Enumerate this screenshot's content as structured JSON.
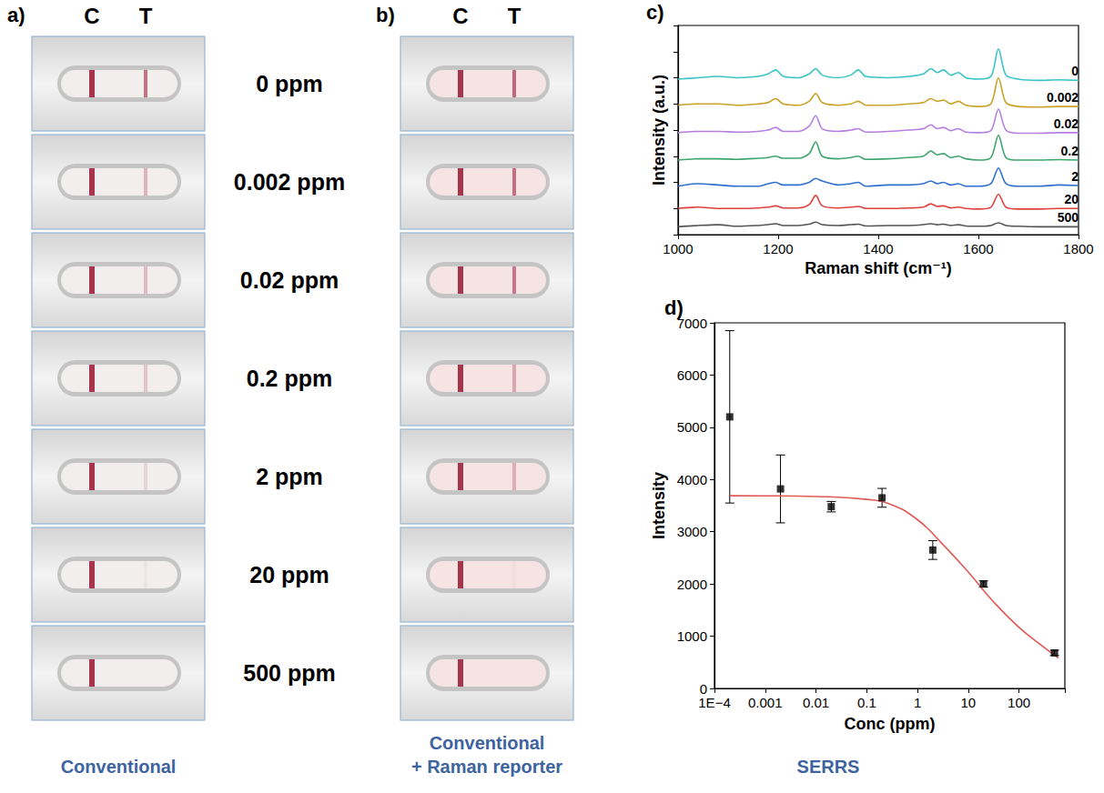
{
  "panels": [
    {
      "panel": "a)",
      "columns": [
        "C",
        "T"
      ],
      "caption": "Conventional"
    },
    {
      "panel": "b)",
      "columns": [
        "C",
        "T"
      ],
      "caption": "Conventional + Raman reporter"
    }
  ],
  "strip_labels": [
    "0 ppm",
    "0.002 ppm",
    "0.02 ppm",
    "0.2 ppm",
    "2 ppm",
    "20 ppm",
    "500 ppm"
  ],
  "chart_data": [
    {
      "panel": "c)",
      "type": "line",
      "xlabel": "Raman shift (cm⁻¹)",
      "ylabel": "Intensity (a.u.)",
      "x": [
        1000,
        1040,
        1080,
        1120,
        1160,
        1180,
        1195,
        1210,
        1240,
        1262,
        1275,
        1288,
        1320,
        1345,
        1360,
        1375,
        1420,
        1460,
        1490,
        1505,
        1518,
        1530,
        1545,
        1560,
        1575,
        1600,
        1625,
        1640,
        1655,
        1680,
        1720,
        1760,
        1800
      ],
      "series": [
        {
          "name": "0",
          "color": "#3cc3c6",
          "values": [
            5.95,
            6.0,
            6.05,
            6.0,
            6.05,
            6.15,
            6.3,
            6.05,
            6.0,
            6.15,
            6.35,
            6.1,
            6.0,
            6.1,
            6.3,
            6.05,
            6.0,
            6.05,
            6.15,
            6.35,
            6.2,
            6.3,
            6.1,
            6.2,
            6.0,
            5.95,
            6.05,
            7.1,
            6.1,
            5.95,
            5.9,
            5.92,
            5.9
          ]
        },
        {
          "name": "0.002",
          "color": "#c9a227",
          "values": [
            4.95,
            5.0,
            5.0,
            4.95,
            5.0,
            5.05,
            5.2,
            5.0,
            4.95,
            5.1,
            5.4,
            5.05,
            4.95,
            5.0,
            5.1,
            4.95,
            4.95,
            5.0,
            5.05,
            5.2,
            5.1,
            5.15,
            5.0,
            5.1,
            4.95,
            4.9,
            5.0,
            6.0,
            5.05,
            4.9,
            4.88,
            4.9,
            4.9
          ]
        },
        {
          "name": "0.02",
          "color": "#b57fe0",
          "values": [
            3.9,
            3.95,
            3.95,
            3.92,
            3.95,
            4.0,
            4.1,
            3.95,
            3.95,
            4.15,
            4.55,
            4.05,
            3.95,
            4.0,
            4.05,
            3.92,
            3.95,
            4.0,
            4.05,
            4.2,
            4.05,
            4.1,
            3.98,
            4.05,
            3.92,
            3.9,
            3.98,
            4.8,
            4.0,
            3.88,
            3.88,
            3.9,
            3.9
          ]
        },
        {
          "name": "0.2",
          "color": "#3ea56f",
          "values": [
            2.85,
            2.9,
            2.9,
            2.88,
            2.92,
            2.95,
            3.0,
            2.92,
            2.92,
            3.1,
            3.55,
            3.0,
            2.9,
            2.95,
            3.0,
            2.88,
            2.9,
            2.95,
            3.0,
            3.2,
            3.05,
            3.1,
            2.95,
            3.0,
            2.9,
            2.85,
            2.95,
            3.8,
            2.95,
            2.85,
            2.85,
            2.87,
            2.85
          ]
        },
        {
          "name": "2",
          "color": "#2f6fd0",
          "values": [
            1.85,
            1.95,
            1.9,
            1.85,
            1.85,
            1.95,
            2.0,
            1.9,
            1.9,
            2.0,
            2.15,
            2.05,
            1.9,
            1.95,
            2.0,
            1.85,
            1.9,
            1.9,
            1.95,
            2.05,
            1.95,
            2.0,
            1.9,
            1.95,
            1.85,
            1.85,
            1.95,
            2.55,
            1.95,
            1.85,
            1.85,
            1.9,
            1.88
          ]
        },
        {
          "name": "20",
          "color": "#e0403c",
          "values": [
            1.0,
            1.05,
            1.0,
            1.0,
            1.02,
            1.05,
            1.1,
            1.02,
            1.02,
            1.15,
            1.5,
            1.1,
            1.02,
            1.05,
            1.08,
            1.0,
            1.0,
            1.02,
            1.05,
            1.18,
            1.08,
            1.1,
            1.02,
            1.05,
            1.0,
            0.98,
            1.05,
            1.55,
            1.05,
            0.98,
            0.98,
            1.0,
            1.0
          ]
        },
        {
          "name": "500",
          "color": "#555555",
          "values": [
            0.3,
            0.35,
            0.38,
            0.32,
            0.35,
            0.38,
            0.42,
            0.35,
            0.35,
            0.4,
            0.48,
            0.38,
            0.35,
            0.38,
            0.4,
            0.33,
            0.35,
            0.35,
            0.38,
            0.42,
            0.38,
            0.4,
            0.35,
            0.38,
            0.33,
            0.32,
            0.35,
            0.45,
            0.35,
            0.32,
            0.3,
            0.3,
            0.3
          ]
        }
      ],
      "xlim": [
        1000,
        1800
      ],
      "xticks": [
        1000,
        1200,
        1400,
        1600,
        1800
      ],
      "ylim": [
        0,
        8
      ],
      "yticks": [
        0,
        1,
        2,
        3,
        4,
        5,
        6,
        7,
        8
      ],
      "tick_labels": "x",
      "grid": false
    },
    {
      "panel": "d)",
      "type": "scatter",
      "caption": "SERRS",
      "xlabel": "Conc (ppm)",
      "ylabel": "Intensity",
      "log": "x",
      "series": [
        {
          "type": "scatter",
          "marker": "square",
          "color": "#000000",
          "x": [
            0.0002,
            0.002,
            0.02,
            0.2,
            2,
            20,
            500
          ],
          "values": [
            5200,
            3820,
            3480,
            3650,
            2650,
            2000,
            680
          ],
          "errors": [
            1650,
            650,
            100,
            180,
            180,
            60,
            50
          ]
        },
        {
          "type": "line",
          "color": "#e05a55",
          "x": [
            0.0002,
            0.001,
            0.01,
            0.1,
            0.3,
            1,
            3,
            10,
            30,
            100,
            300,
            600
          ],
          "values": [
            3690,
            3688,
            3675,
            3620,
            3520,
            3230,
            2780,
            2230,
            1680,
            1170,
            800,
            580
          ]
        }
      ],
      "xlim": [
        0.0001,
        800
      ],
      "xticks": [
        {
          "value": 0.0001,
          "label": "1E−4"
        },
        0.001,
        0.01,
        0.1,
        1,
        10,
        100
      ],
      "ylim": [
        0,
        7000
      ],
      "yticks": [
        0,
        1000,
        2000,
        3000,
        4000,
        5000,
        6000,
        7000
      ],
      "grid": false
    }
  ]
}
